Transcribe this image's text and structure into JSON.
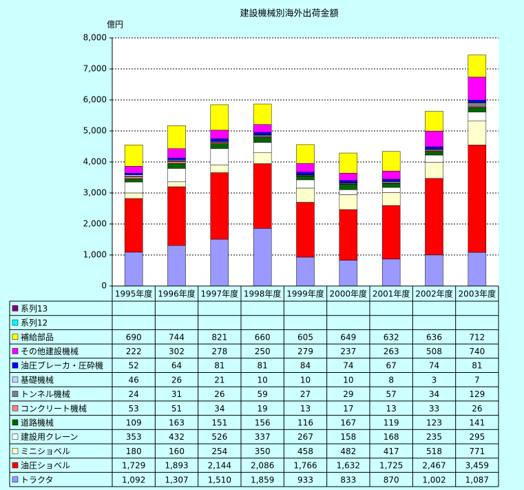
{
  "chart_data": {
    "type": "stacked_bar",
    "title": "建設機械別海外出荷金額",
    "y_label": "億円",
    "categories": [
      "1995年度",
      "1996年度",
      "1997年度",
      "1998年度",
      "1999年度",
      "2000年度",
      "2001年度",
      "2002年度",
      "2003年度"
    ],
    "ylim": [
      0,
      8000
    ],
    "yticks": [
      0,
      {
        "value": 1000,
        "label": "1,000"
      },
      {
        "value": 2000,
        "label": "2,000"
      },
      {
        "value": 3000,
        "label": "3,000"
      },
      {
        "value": 4000,
        "label": "4,000"
      },
      {
        "value": 5000,
        "label": "5,000"
      },
      {
        "value": 6000,
        "label": "6,000"
      },
      {
        "value": 7000,
        "label": "7,000"
      },
      {
        "value": 8000,
        "label": "8,000"
      }
    ],
    "grid": true,
    "series": [
      {
        "name": "トラクタ",
        "color": "#9999ff",
        "values": [
          1092,
          1307,
          1510,
          1859,
          933,
          833,
          870,
          1002,
          1087
        ],
        "value_labels": [
          "1,092",
          "1,307",
          "1,510",
          "1,859",
          "933",
          "833",
          "870",
          "1,002",
          "1,087"
        ]
      },
      {
        "name": "油圧ショベル",
        "color": "#ff0000",
        "values": [
          1729,
          1893,
          2144,
          2086,
          1766,
          1632,
          1725,
          2467,
          3459
        ],
        "value_labels": [
          "1,729",
          "1,893",
          "2,144",
          "2,086",
          "1,766",
          "1,632",
          "1,725",
          "2,467",
          "3,459"
        ]
      },
      {
        "name": "ミニショベル",
        "color": "#ffffcc",
        "values": [
          180,
          160,
          254,
          350,
          458,
          482,
          417,
          518,
          771
        ],
        "value_labels": [
          "180",
          "160",
          "254",
          "350",
          "458",
          "482",
          "417",
          "518",
          "771"
        ]
      },
      {
        "name": "建設用クレーン",
        "color": "#ffffff",
        "values": [
          353,
          432,
          526,
          337,
          267,
          158,
          168,
          235,
          295
        ],
        "value_labels": [
          "353",
          "432",
          "526",
          "337",
          "267",
          "158",
          "168",
          "235",
          "295"
        ]
      },
      {
        "name": "道路機械",
        "color": "#006600",
        "values": [
          109,
          163,
          151,
          156,
          116,
          167,
          119,
          123,
          141
        ],
        "value_labels": [
          "109",
          "163",
          "151",
          "156",
          "116",
          "167",
          "119",
          "123",
          "141"
        ]
      },
      {
        "name": "コンクリート機械",
        "color": "#ff8080",
        "values": [
          53,
          51,
          34,
          19,
          13,
          17,
          13,
          33,
          26
        ],
        "value_labels": [
          "53",
          "51",
          "34",
          "19",
          "13",
          "17",
          "13",
          "33",
          "26"
        ]
      },
      {
        "name": "トンネル機械",
        "color": "#808080",
        "values": [
          24,
          31,
          26,
          59,
          27,
          29,
          57,
          34,
          129
        ],
        "value_labels": [
          "24",
          "31",
          "26",
          "59",
          "27",
          "29",
          "57",
          "34",
          "129"
        ]
      },
      {
        "name": "基礎機械",
        "color": "#ccccff",
        "values": [
          46,
          26,
          21,
          10,
          10,
          10,
          8,
          3,
          7
        ],
        "value_labels": [
          "46",
          "26",
          "21",
          "10",
          "10",
          "10",
          "8",
          "3",
          "7"
        ]
      },
      {
        "name": "油圧ブレーカ・圧砕機",
        "color": "#0000ff",
        "values": [
          52,
          64,
          81,
          81,
          84,
          74,
          67,
          74,
          81
        ],
        "value_labels": [
          "52",
          "64",
          "81",
          "81",
          "84",
          "74",
          "67",
          "74",
          "81"
        ]
      },
      {
        "name": "その他建設機械",
        "color": "#ff00ff",
        "values": [
          222,
          302,
          278,
          250,
          279,
          237,
          263,
          508,
          740
        ],
        "value_labels": [
          "222",
          "302",
          "278",
          "250",
          "279",
          "237",
          "263",
          "508",
          "740"
        ]
      },
      {
        "name": "補給部品",
        "color": "#ffff00",
        "values": [
          690,
          744,
          821,
          660,
          605,
          649,
          632,
          636,
          712
        ],
        "value_labels": [
          "690",
          "744",
          "821",
          "660",
          "605",
          "649",
          "632",
          "636",
          "712"
        ]
      },
      {
        "name": "系列12",
        "color": "#00ffff",
        "values": [
          null,
          null,
          null,
          null,
          null,
          null,
          null,
          null,
          null
        ]
      },
      {
        "name": "系列13",
        "color": "#800080",
        "values": [
          null,
          null,
          null,
          null,
          null,
          null,
          null,
          null,
          null
        ]
      }
    ]
  }
}
